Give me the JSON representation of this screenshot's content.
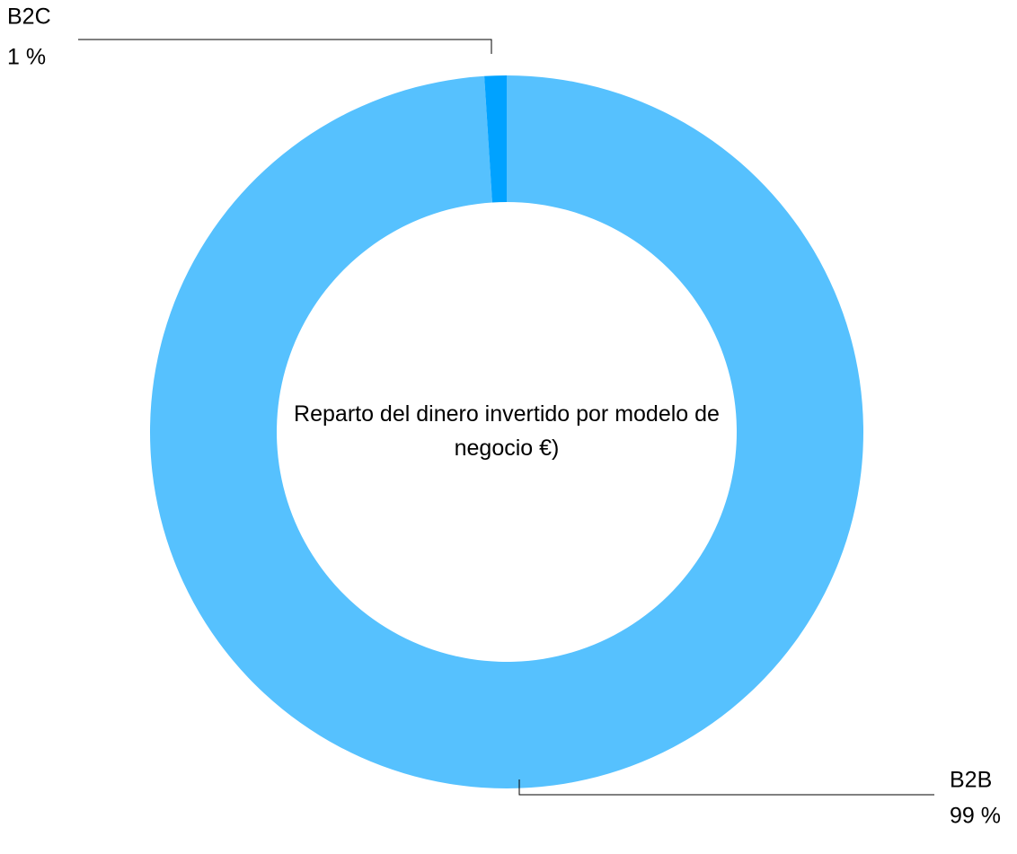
{
  "chart_data": {
    "type": "donut",
    "title": "Reparto del dinero invertido por modelo de negocio €)",
    "categories": [
      "B2B",
      "B2C"
    ],
    "values": [
      99,
      1
    ],
    "value_labels": [
      "99 %",
      "1 %"
    ],
    "colors": [
      "#56c1fe",
      "#00a2ff"
    ]
  }
}
